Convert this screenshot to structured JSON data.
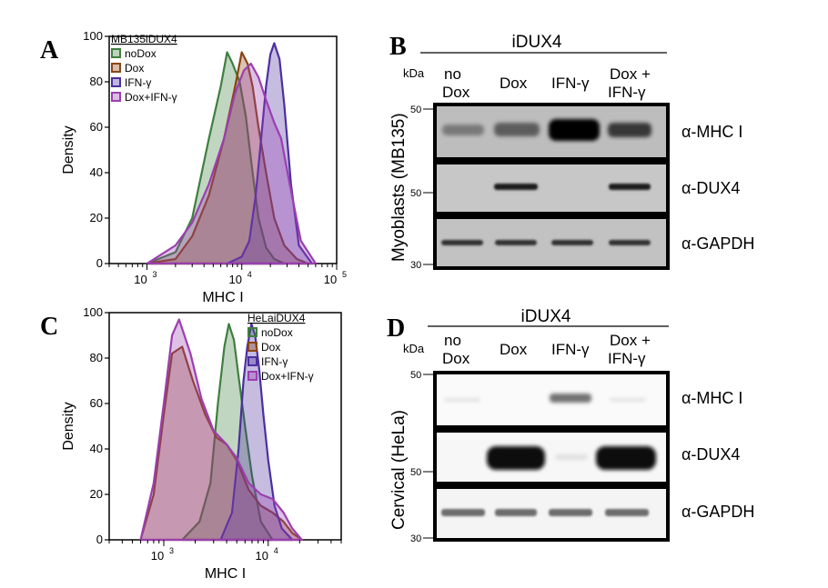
{
  "panels": {
    "A": {
      "letter": "A",
      "legend_title": "MB135iDUX4",
      "legend_items": [
        "noDox",
        "Dox",
        "IFN-γ",
        "Dox+IFN-γ"
      ],
      "ylabel": "Density",
      "xlabel": "MHC I",
      "y_ticks": [
        "0",
        "20",
        "40",
        "60",
        "80",
        "100"
      ],
      "x_ticks": [
        {
          "base": "10",
          "exp": "3"
        },
        {
          "base": "10",
          "exp": "4"
        },
        {
          "base": "10",
          "exp": "5"
        }
      ]
    },
    "B": {
      "letter": "B",
      "group_label": "iDUX4",
      "kda_label": "kDa",
      "lanes": [
        [
          "no",
          "Dox"
        ],
        [
          "Dox"
        ],
        [
          "IFN-γ"
        ],
        [
          "Dox +",
          "IFN-γ"
        ]
      ],
      "side_label": "Myoblasts (MB135)",
      "markers": [
        "50",
        "50",
        "30"
      ],
      "antibodies": [
        "α-MHC I",
        "α-DUX4",
        "α-GAPDH"
      ]
    },
    "C": {
      "letter": "C",
      "legend_title": "HeLaiDUX4",
      "legend_items": [
        "noDox",
        "Dox",
        "IFN-γ",
        "Dox+IFN-γ"
      ],
      "ylabel": "Density",
      "xlabel": "MHC I",
      "y_ticks": [
        "0",
        "20",
        "40",
        "60",
        "80",
        "100"
      ],
      "x_ticks": [
        {
          "base": "10",
          "exp": "3"
        },
        {
          "base": "10",
          "exp": "4"
        }
      ]
    },
    "D": {
      "letter": "D",
      "group_label": "iDUX4",
      "kda_label": "kDa",
      "lanes": [
        [
          "no",
          "Dox"
        ],
        [
          "Dox"
        ],
        [
          "IFN-γ"
        ],
        [
          "Dox +",
          "IFN-γ"
        ]
      ],
      "side_label": "Cervical (HeLa)",
      "markers": [
        "50",
        "50",
        "30"
      ],
      "antibodies": [
        "α-MHC I",
        "α-DUX4",
        "α-GAPDH"
      ]
    }
  },
  "colors": {
    "noDox": "#3f7f3f",
    "Dox": "#8b4513",
    "IFN-γ": "#4b2fa0",
    "Dox+IFN-γ": "#9b3fb0"
  },
  "chart_data": [
    {
      "type": "area",
      "title": "MB135iDUX4",
      "xlabel": "MHC I",
      "ylabel": "Density",
      "xscale": "log",
      "xlim": [
        400,
        100000
      ],
      "ylim": [
        0,
        100
      ],
      "legend": "top-left",
      "series": [
        {
          "name": "noDox",
          "x": [
            1000,
            2000,
            3000,
            4500,
            6000,
            7000,
            8000,
            9500,
            11000,
            13000,
            15000,
            18000,
            22000,
            28000
          ],
          "values": [
            0,
            5,
            20,
            55,
            78,
            93,
            88,
            80,
            65,
            40,
            20,
            7,
            2,
            0
          ]
        },
        {
          "name": "Dox",
          "x": [
            1000,
            2000,
            3000,
            4500,
            6500,
            8500,
            10000,
            11500,
            13000,
            15000,
            18000,
            22000,
            28000,
            38000,
            50000
          ],
          "values": [
            0,
            2,
            12,
            30,
            55,
            78,
            93,
            88,
            78,
            60,
            40,
            20,
            8,
            2,
            0
          ]
        },
        {
          "name": "IFN-γ",
          "x": [
            7000,
            10000,
            12000,
            14000,
            16000,
            18000,
            20000,
            22000,
            25000,
            28000,
            33000,
            40000,
            55000
          ],
          "values": [
            0,
            3,
            10,
            30,
            55,
            78,
            92,
            97,
            90,
            70,
            35,
            8,
            0
          ]
        },
        {
          "name": "Dox+IFN-γ",
          "x": [
            1000,
            2000,
            3000,
            4500,
            6500,
            8500,
            10500,
            12500,
            15000,
            18000,
            22000,
            26000,
            32000,
            42000,
            60000
          ],
          "values": [
            0,
            8,
            18,
            35,
            55,
            75,
            85,
            88,
            82,
            72,
            62,
            55,
            35,
            10,
            0
          ]
        }
      ]
    },
    {
      "type": "area",
      "title": "HeLaiDUX4",
      "xlabel": "MHC I",
      "ylabel": "Density",
      "xscale": "log",
      "xlim": [
        300,
        50000
      ],
      "ylim": [
        0,
        100
      ],
      "legend": "top-right",
      "series": [
        {
          "name": "noDox",
          "x": [
            1500,
            2200,
            2800,
            3300,
            3800,
            4200,
            4700,
            5200,
            6000,
            7000,
            8500,
            11000
          ],
          "values": [
            0,
            8,
            25,
            60,
            85,
            95,
            88,
            72,
            50,
            28,
            8,
            0
          ]
        },
        {
          "name": "Dox",
          "x": [
            600,
            800,
            1000,
            1200,
            1500,
            1900,
            2500,
            3200,
            4000,
            5000,
            6500,
            8500,
            11000,
            14000,
            17000,
            21000
          ],
          "values": [
            0,
            20,
            55,
            82,
            85,
            70,
            55,
            45,
            42,
            35,
            22,
            15,
            12,
            8,
            3,
            0
          ]
        },
        {
          "name": "IFN-γ",
          "x": [
            3500,
            4500,
            5200,
            5800,
            6300,
            6900,
            7500,
            8200,
            9000,
            10000,
            11500,
            13500,
            17000
          ],
          "values": [
            0,
            12,
            40,
            70,
            85,
            95,
            90,
            75,
            55,
            35,
            15,
            5,
            0
          ]
        },
        {
          "name": "Dox+IFN-γ",
          "x": [
            600,
            800,
            1000,
            1200,
            1400,
            1800,
            2300,
            3000,
            4000,
            5000,
            6500,
            8500,
            11000,
            14000,
            17000,
            21000
          ],
          "values": [
            0,
            25,
            60,
            90,
            97,
            82,
            62,
            48,
            42,
            36,
            25,
            20,
            18,
            12,
            5,
            0
          ]
        }
      ]
    }
  ]
}
